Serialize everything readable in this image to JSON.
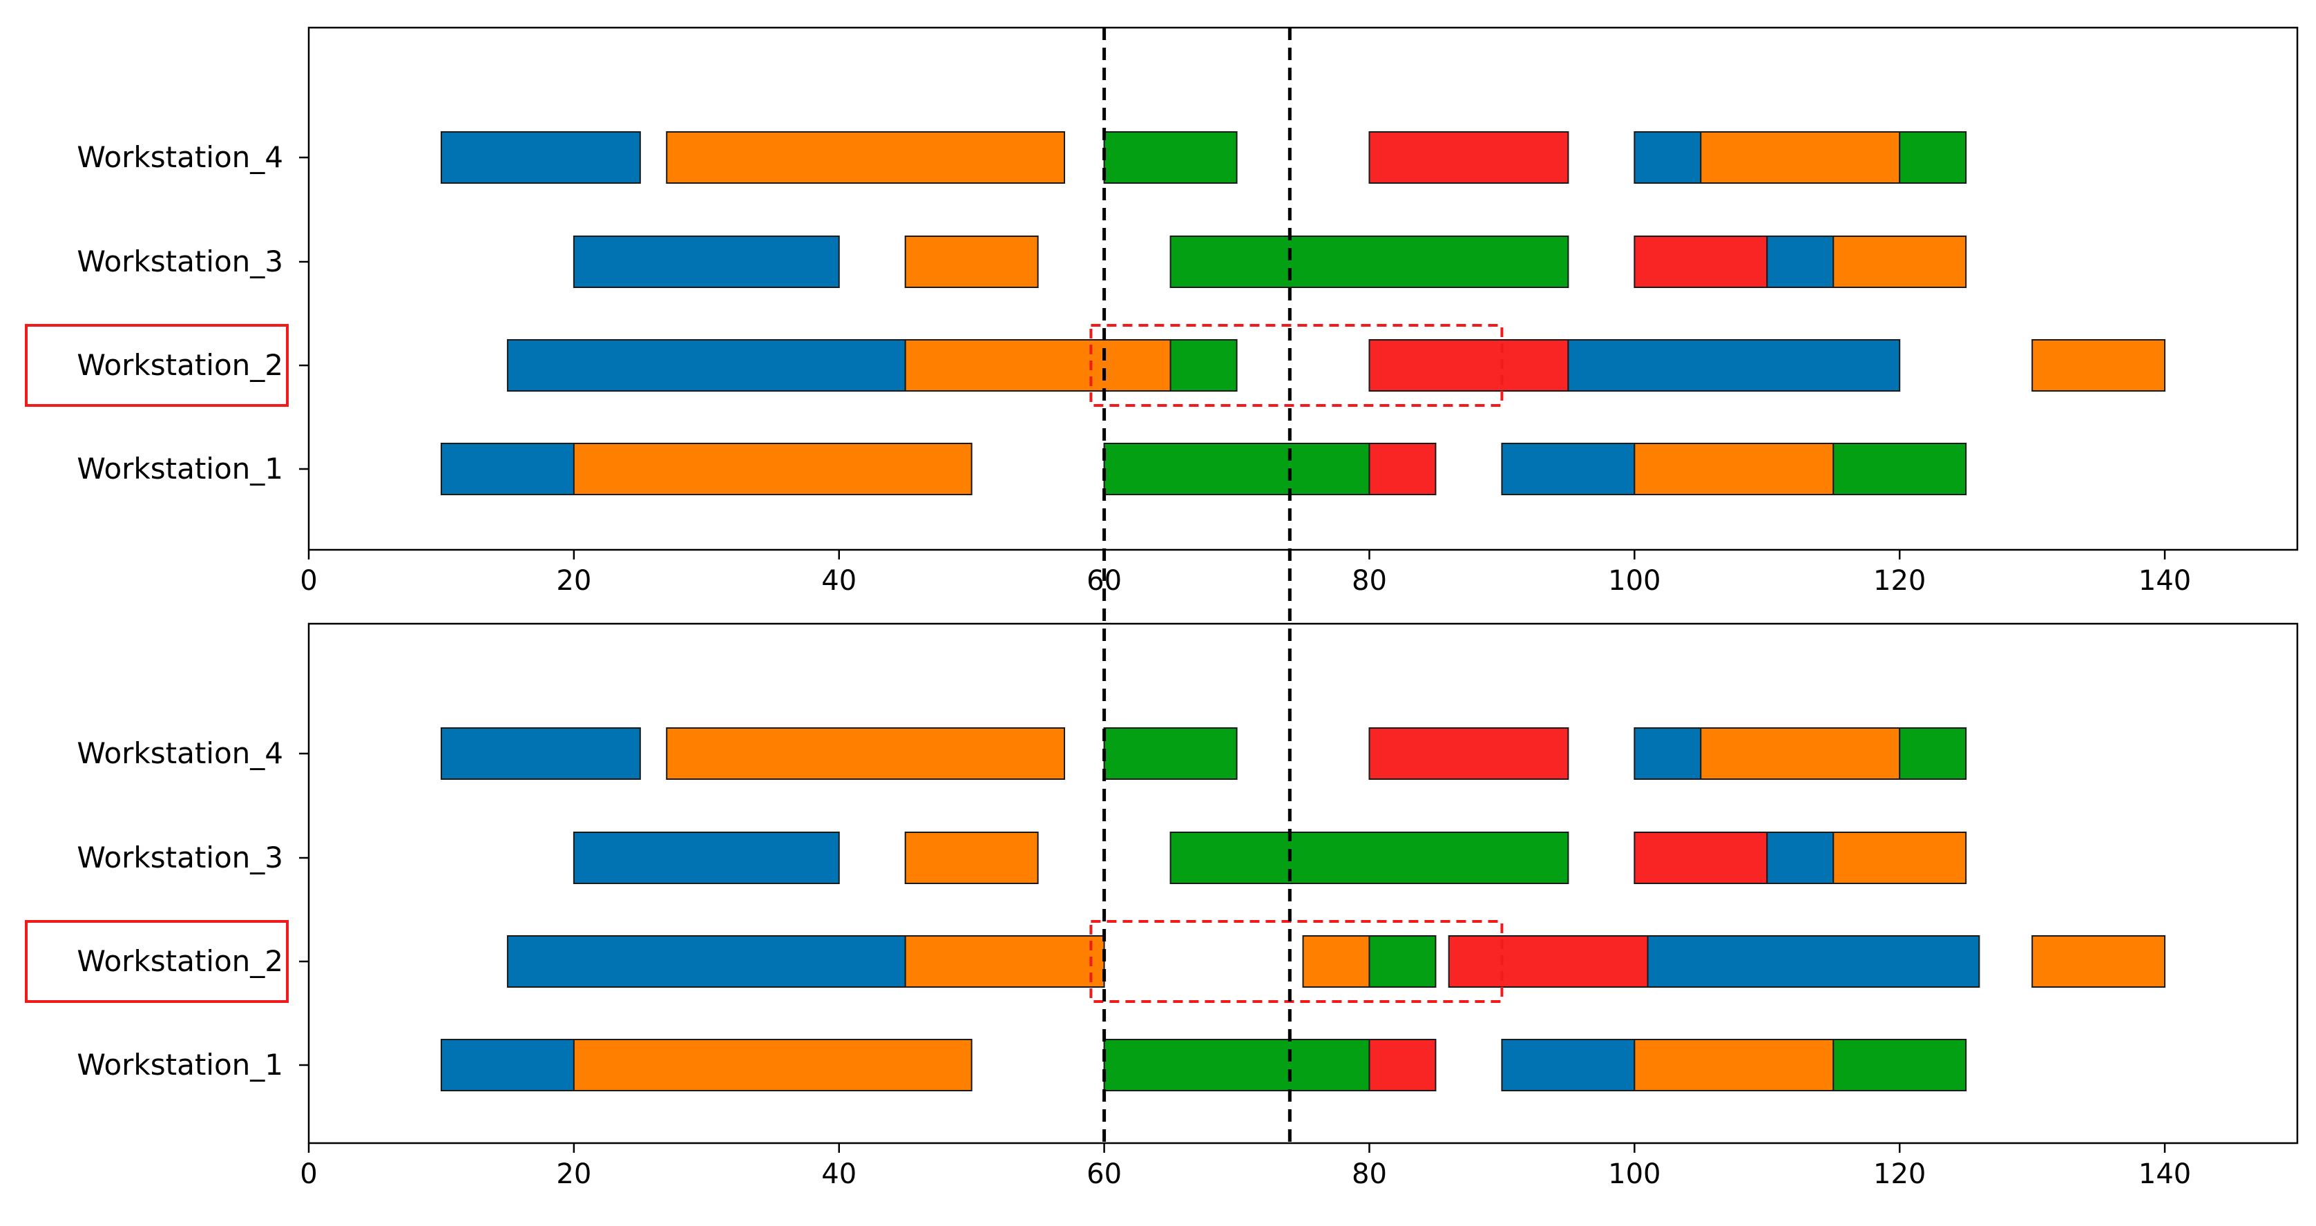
{
  "colors": {
    "blue": "#0173b2",
    "orange": "#ff7f00",
    "green": "#02a012",
    "red": "#f92525",
    "highlight": "#f21a1a",
    "marker": "#000000",
    "edge": "#1a1a1a"
  },
  "chart_data": [
    {
      "type": "gantt",
      "title": "",
      "xlabel": "",
      "ylabel": "",
      "xlim": [
        0,
        150
      ],
      "xticks": [
        0,
        20,
        40,
        60,
        80,
        100,
        120,
        140
      ],
      "categories": [
        "Workstation_1",
        "Workstation_2",
        "Workstation_3",
        "Workstation_4"
      ],
      "highlighted_category": "Workstation_2",
      "vertical_markers": [
        60,
        74
      ],
      "highlight_region": {
        "x": [
          59,
          90
        ],
        "category": "Workstation_2"
      },
      "tasks": [
        {
          "row": "Workstation_4",
          "start": 10,
          "end": 25,
          "color": "blue"
        },
        {
          "row": "Workstation_4",
          "start": 27,
          "end": 57,
          "color": "orange"
        },
        {
          "row": "Workstation_4",
          "start": 60,
          "end": 70,
          "color": "green"
        },
        {
          "row": "Workstation_4",
          "start": 80,
          "end": 95,
          "color": "red"
        },
        {
          "row": "Workstation_4",
          "start": 100,
          "end": 105,
          "color": "blue"
        },
        {
          "row": "Workstation_4",
          "start": 105,
          "end": 120,
          "color": "orange"
        },
        {
          "row": "Workstation_4",
          "start": 120,
          "end": 125,
          "color": "green"
        },
        {
          "row": "Workstation_3",
          "start": 20,
          "end": 40,
          "color": "blue"
        },
        {
          "row": "Workstation_3",
          "start": 45,
          "end": 55,
          "color": "orange"
        },
        {
          "row": "Workstation_3",
          "start": 65,
          "end": 95,
          "color": "green"
        },
        {
          "row": "Workstation_3",
          "start": 100,
          "end": 110,
          "color": "red"
        },
        {
          "row": "Workstation_3",
          "start": 110,
          "end": 115,
          "color": "blue"
        },
        {
          "row": "Workstation_3",
          "start": 115,
          "end": 125,
          "color": "orange"
        },
        {
          "row": "Workstation_2",
          "start": 15,
          "end": 45,
          "color": "blue"
        },
        {
          "row": "Workstation_2",
          "start": 45,
          "end": 65,
          "color": "orange"
        },
        {
          "row": "Workstation_2",
          "start": 65,
          "end": 70,
          "color": "green"
        },
        {
          "row": "Workstation_2",
          "start": 80,
          "end": 95,
          "color": "red"
        },
        {
          "row": "Workstation_2",
          "start": 95,
          "end": 120,
          "color": "blue"
        },
        {
          "row": "Workstation_2",
          "start": 130,
          "end": 140,
          "color": "orange"
        },
        {
          "row": "Workstation_1",
          "start": 10,
          "end": 20,
          "color": "blue"
        },
        {
          "row": "Workstation_1",
          "start": 20,
          "end": 50,
          "color": "orange"
        },
        {
          "row": "Workstation_1",
          "start": 60,
          "end": 80,
          "color": "green"
        },
        {
          "row": "Workstation_1",
          "start": 80,
          "end": 85,
          "color": "red"
        },
        {
          "row": "Workstation_1",
          "start": 90,
          "end": 100,
          "color": "blue"
        },
        {
          "row": "Workstation_1",
          "start": 100,
          "end": 115,
          "color": "orange"
        },
        {
          "row": "Workstation_1",
          "start": 115,
          "end": 125,
          "color": "green"
        }
      ]
    },
    {
      "type": "gantt",
      "title": "",
      "xlabel": "",
      "ylabel": "",
      "xlim": [
        0,
        150
      ],
      "xticks": [
        0,
        20,
        40,
        60,
        80,
        100,
        120,
        140
      ],
      "categories": [
        "Workstation_1",
        "Workstation_2",
        "Workstation_3",
        "Workstation_4"
      ],
      "highlighted_category": "Workstation_2",
      "vertical_markers": [
        60,
        74
      ],
      "highlight_region": {
        "x": [
          59,
          90
        ],
        "category": "Workstation_2"
      },
      "tasks": [
        {
          "row": "Workstation_4",
          "start": 10,
          "end": 25,
          "color": "blue"
        },
        {
          "row": "Workstation_4",
          "start": 27,
          "end": 57,
          "color": "orange"
        },
        {
          "row": "Workstation_4",
          "start": 60,
          "end": 70,
          "color": "green"
        },
        {
          "row": "Workstation_4",
          "start": 80,
          "end": 95,
          "color": "red"
        },
        {
          "row": "Workstation_4",
          "start": 100,
          "end": 105,
          "color": "blue"
        },
        {
          "row": "Workstation_4",
          "start": 105,
          "end": 120,
          "color": "orange"
        },
        {
          "row": "Workstation_4",
          "start": 120,
          "end": 125,
          "color": "green"
        },
        {
          "row": "Workstation_3",
          "start": 20,
          "end": 40,
          "color": "blue"
        },
        {
          "row": "Workstation_3",
          "start": 45,
          "end": 55,
          "color": "orange"
        },
        {
          "row": "Workstation_3",
          "start": 65,
          "end": 95,
          "color": "green"
        },
        {
          "row": "Workstation_3",
          "start": 100,
          "end": 110,
          "color": "red"
        },
        {
          "row": "Workstation_3",
          "start": 110,
          "end": 115,
          "color": "blue"
        },
        {
          "row": "Workstation_3",
          "start": 115,
          "end": 125,
          "color": "orange"
        },
        {
          "row": "Workstation_2",
          "start": 15,
          "end": 45,
          "color": "blue"
        },
        {
          "row": "Workstation_2",
          "start": 45,
          "end": 60,
          "color": "orange"
        },
        {
          "row": "Workstation_2",
          "start": 75,
          "end": 80,
          "color": "orange"
        },
        {
          "row": "Workstation_2",
          "start": 80,
          "end": 85,
          "color": "green"
        },
        {
          "row": "Workstation_2",
          "start": 86,
          "end": 101,
          "color": "red"
        },
        {
          "row": "Workstation_2",
          "start": 101,
          "end": 126,
          "color": "blue"
        },
        {
          "row": "Workstation_2",
          "start": 130,
          "end": 140,
          "color": "orange"
        },
        {
          "row": "Workstation_1",
          "start": 10,
          "end": 20,
          "color": "blue"
        },
        {
          "row": "Workstation_1",
          "start": 20,
          "end": 50,
          "color": "orange"
        },
        {
          "row": "Workstation_1",
          "start": 60,
          "end": 80,
          "color": "green"
        },
        {
          "row": "Workstation_1",
          "start": 80,
          "end": 85,
          "color": "red"
        },
        {
          "row": "Workstation_1",
          "start": 90,
          "end": 100,
          "color": "blue"
        },
        {
          "row": "Workstation_1",
          "start": 100,
          "end": 115,
          "color": "orange"
        },
        {
          "row": "Workstation_1",
          "start": 115,
          "end": 125,
          "color": "green"
        }
      ]
    }
  ]
}
